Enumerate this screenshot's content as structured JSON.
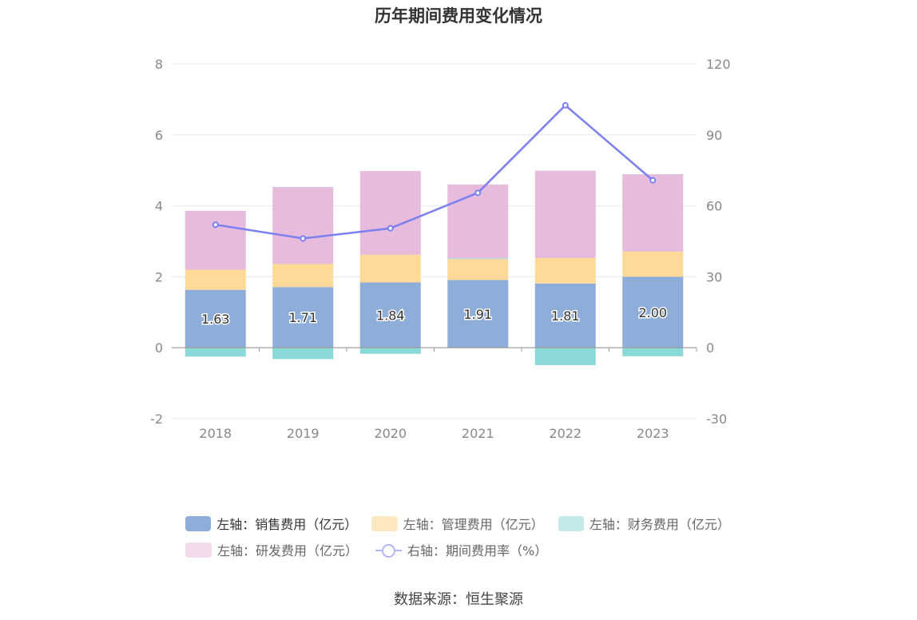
{
  "chart_data": {
    "type": "bar",
    "title": "历年期间费用变化情况",
    "categories": [
      "2018",
      "2019",
      "2020",
      "2021",
      "2022",
      "2023"
    ],
    "stacked": true,
    "series": [
      {
        "name": "左轴：销售费用（亿元）",
        "axis": "left",
        "type": "bar",
        "color": "#8eadd9",
        "values": [
          1.63,
          1.71,
          1.84,
          1.91,
          1.81,
          2.0
        ],
        "labels": [
          "1.63",
          "1.71",
          "1.84",
          "1.91",
          "1.81",
          "2.00"
        ]
      },
      {
        "name": "左轴：管理费用（亿元）",
        "axis": "left",
        "type": "bar",
        "color": "#fed997",
        "values": [
          0.57,
          0.65,
          0.78,
          0.59,
          0.72,
          0.71
        ]
      },
      {
        "name": "左轴：财务费用（亿元）",
        "axis": "left",
        "type": "bar",
        "color": "#8ad8d8",
        "values": [
          -0.25,
          -0.32,
          -0.17,
          0.02,
          -0.49,
          -0.24
        ]
      },
      {
        "name": "左轴：研发费用（亿元）",
        "axis": "left",
        "type": "bar",
        "color": "#e6bbdc",
        "values": [
          1.66,
          2.17,
          2.36,
          2.08,
          2.46,
          2.18
        ]
      },
      {
        "name": "右轴：期间费用率（%）",
        "axis": "right",
        "type": "line",
        "color": "#7b7ff0",
        "values": [
          52.0,
          46.2,
          50.5,
          65.5,
          102.5,
          70.8
        ]
      }
    ],
    "left_axis": {
      "min": -2,
      "max": 8,
      "ticks": [
        -2,
        0,
        2,
        4,
        6,
        8
      ]
    },
    "right_axis": {
      "min": -30,
      "max": 120,
      "ticks": [
        -30,
        0,
        30,
        60,
        90,
        120
      ]
    },
    "grid": true,
    "legend_position": "bottom"
  },
  "legend": {
    "sales": "左轴：销售费用（亿元）",
    "admin": "左轴：管理费用（亿元）",
    "finance": "左轴：财务费用（亿元）",
    "rnd": "左轴：研发费用（亿元）",
    "rate": "右轴：期间费用率（%）"
  },
  "source": "数据来源：恒生聚源"
}
